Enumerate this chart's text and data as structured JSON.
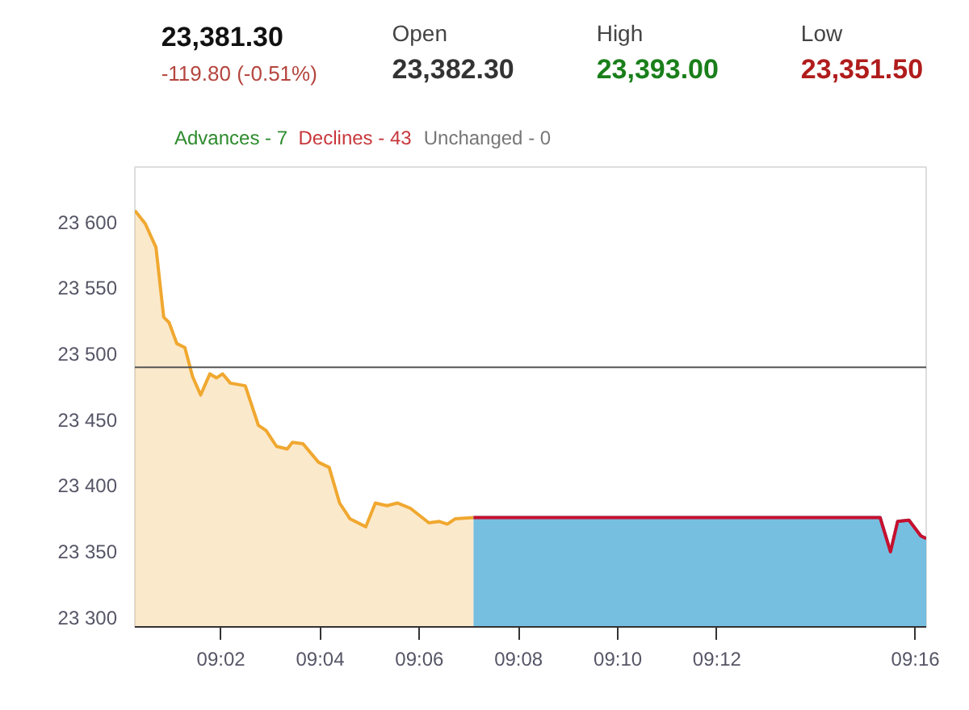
{
  "chart_data": {
    "type": "area",
    "annotations": [
      "23,381.30",
      "-119.80 (-0.51%)",
      "Open",
      "23,382.30",
      "High",
      "23,393.00",
      "Low",
      "23,351.50",
      "Advances - 7",
      "Declines - 43",
      "Unchanged - 0"
    ],
    "series": [
      {
        "color": "#f0a830",
        "x": [
          9.0044,
          9.0079,
          9.0115,
          9.0141,
          9.0159,
          9.0185,
          9.0212,
          9.0238,
          9.0265,
          9.0296,
          9.0318,
          9.0339,
          9.0365,
          9.0415,
          9.0459,
          9.0485,
          9.052,
          9.0556,
          9.0573,
          9.0609,
          9.0661,
          9.0697,
          9.0732,
          9.0767,
          9.082,
          9.0852,
          9.0891,
          9.0926,
          9.097,
          9.1032,
          9.1067,
          9.1094,
          9.112,
          9.1182
        ],
        "values": [
          23609,
          23599,
          23581,
          23528,
          23524,
          23508,
          23505,
          23483,
          23469,
          23485,
          23482,
          23485,
          23478,
          23476,
          23446,
          23442,
          23430,
          23428,
          23433,
          23432,
          23418,
          23414,
          23387,
          23375,
          23369,
          23387,
          23385,
          23387,
          23383,
          23372,
          23373,
          23371,
          23375,
          23376
        ]
      },
      {
        "color": "#5fb4dc",
        "x": [
          9.1182,
          9.2548,
          9.2583,
          9.2607,
          9.2645,
          9.2685,
          9.2703
        ],
        "values": [
          23376,
          23376,
          23350,
          23373,
          23374,
          23362,
          23360
        ]
      },
      {
        "type": "line",
        "color": "#c8102e",
        "x": [
          9.1182,
          9.2548,
          9.2583,
          9.2607,
          9.2645,
          9.2685,
          9.2703
        ],
        "values": [
          23376,
          23376,
          23350,
          23373,
          23374,
          23362,
          23360
        ]
      }
    ],
    "ref_lines": [
      {
        "axis": "y",
        "value": 23490,
        "color": "#555555"
      }
    ],
    "xlim": [
      9.0044,
      9.2703
    ],
    "xticks": [
      {
        "value": 9.03333,
        "label": "09:02"
      },
      {
        "value": 9.06667,
        "label": "09:04"
      },
      {
        "value": 9.1,
        "label": "09:06"
      },
      {
        "value": 9.13333,
        "label": "09:08"
      },
      {
        "value": 9.16667,
        "label": "09:10"
      },
      {
        "value": 9.2,
        "label": "09:12"
      },
      {
        "value": 9.26667,
        "label": "09:16"
      }
    ],
    "ylim": [
      23293,
      23642
    ],
    "yticks": [
      {
        "value": 23300,
        "label": "23 300"
      },
      {
        "value": 23350,
        "label": "23 350"
      },
      {
        "value": 23400,
        "label": "23 400"
      },
      {
        "value": 23450,
        "label": "23 450"
      },
      {
        "value": 23500,
        "label": "23 500"
      },
      {
        "value": 23550,
        "label": "23 550"
      },
      {
        "value": 23600,
        "label": "23 600"
      }
    ],
    "grid": false
  }
}
